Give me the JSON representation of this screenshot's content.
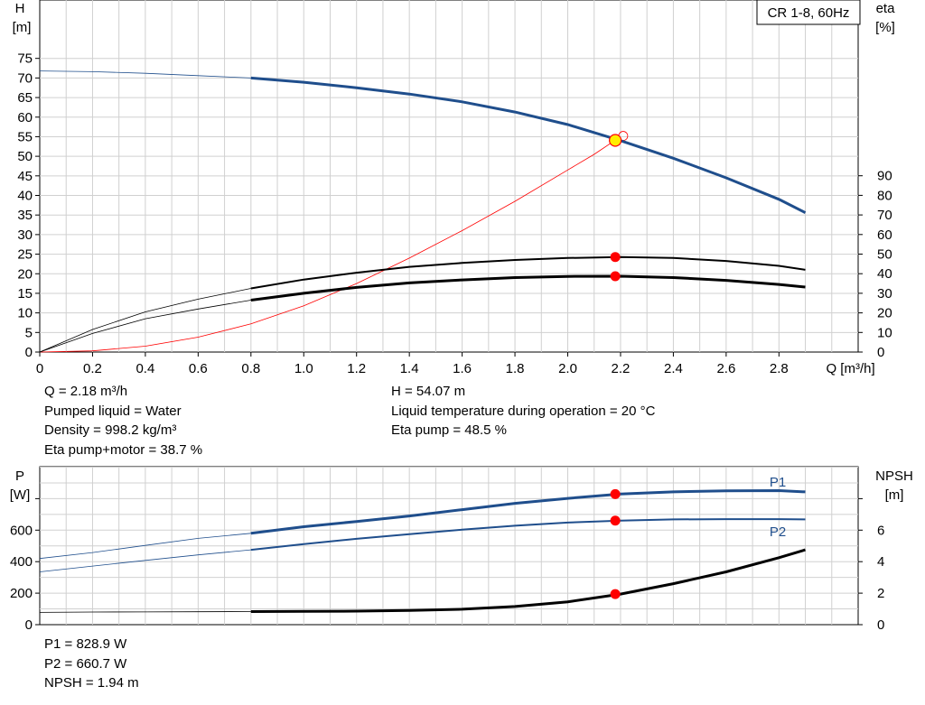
{
  "title_box": "CR 1-8, 60Hz",
  "colors": {
    "head": "#1f4e8c",
    "power": "#1f4e8c",
    "eta": "#000000",
    "npsh": "#000000",
    "eta_h": "#ff0000",
    "marker": "#ff0000",
    "duty_point": "#ffee00",
    "grid": "#d0d0d0"
  },
  "info_top": {
    "left": [
      "Q = 2.18 m³/h",
      "Pumped liquid = Water",
      "Density = 998.2 kg/m³",
      "Eta pump+motor = 38.7 %"
    ],
    "right": [
      "H = 54.07 m",
      "Liquid temperature during operation = 20 °C",
      "Eta pump = 48.5 %"
    ]
  },
  "info_bottom": [
    "P1 = 828.9 W",
    "P2 = 660.7 W",
    "NPSH = 1.94 m"
  ],
  "chart_data": [
    {
      "type": "line",
      "xlabel": "Q [m³/h]",
      "ylabel_left": [
        "H",
        "[m]"
      ],
      "ylabel_right": [
        "eta",
        "[%]"
      ],
      "x_ticks": [
        "0",
        "0.2",
        "0.4",
        "0.6",
        "0.8",
        "1.0",
        "1.2",
        "1.4",
        "1.6",
        "1.8",
        "2.0",
        "2.2",
        "2.4",
        "2.6",
        "2.8"
      ],
      "y_ticks_left": [
        "0",
        "5",
        "10",
        "15",
        "20",
        "25",
        "30",
        "35",
        "40",
        "45",
        "50",
        "55",
        "60",
        "65",
        "70",
        "75"
      ],
      "y_ticks_right": [
        "0",
        "10",
        "20",
        "30",
        "40",
        "50",
        "60",
        "70",
        "80",
        "90"
      ],
      "xlim": [
        0,
        3.1
      ],
      "ylim_left": [
        0,
        80
      ],
      "ylim_right": [
        0,
        110
      ],
      "grid": true,
      "duty_point": {
        "x": 2.18,
        "y": 54.07
      },
      "series": [
        {
          "id": "H",
          "axis": "left",
          "color": "#1f4e8c",
          "x": [
            0,
            0.2,
            0.4,
            0.6,
            0.8,
            1.0,
            1.2,
            1.4,
            1.6,
            1.8,
            2.0,
            2.2,
            2.4,
            2.6,
            2.8,
            2.9
          ],
          "y": [
            71.8,
            71.6,
            71.2,
            70.6,
            70.0,
            68.9,
            67.5,
            65.9,
            63.9,
            61.3,
            58.1,
            54.0,
            49.5,
            44.5,
            39.0,
            35.6
          ]
        },
        {
          "id": "eta_pump",
          "axis": "right",
          "color": "#000000",
          "x": [
            0,
            0.2,
            0.4,
            0.6,
            0.8,
            1.0,
            1.2,
            1.4,
            1.6,
            1.8,
            2.0,
            2.2,
            2.4,
            2.6,
            2.8,
            2.9
          ],
          "y": [
            0,
            11.5,
            20.5,
            27,
            32.5,
            37,
            40.5,
            43.5,
            45.5,
            47,
            48,
            48.5,
            48,
            46.5,
            44,
            42
          ]
        },
        {
          "id": "eta_pump_motor",
          "axis": "right",
          "color": "#000000",
          "x": [
            0,
            0.2,
            0.4,
            0.6,
            0.8,
            1.0,
            1.2,
            1.4,
            1.6,
            1.8,
            2.0,
            2.2,
            2.4,
            2.6,
            2.8,
            2.9
          ],
          "y": [
            0,
            9.5,
            17,
            22,
            26.5,
            30,
            33,
            35.3,
            36.8,
            38,
            38.6,
            38.7,
            38,
            36.6,
            34.5,
            33.2
          ]
        },
        {
          "id": "eta_hydraulic",
          "axis": "left",
          "color": "#ff0000",
          "x": [
            0,
            0.2,
            0.4,
            0.6,
            0.8,
            1.0,
            1.2,
            1.4,
            1.6,
            1.8,
            2.0,
            2.1,
            2.18
          ],
          "y": [
            0,
            0.3,
            1.5,
            3.8,
            7.2,
            11.8,
            17.5,
            24,
            31,
            38.5,
            46.5,
            50.5,
            54.1
          ]
        }
      ],
      "markers": [
        {
          "x": 2.18,
          "y": 48.5,
          "axis": "right"
        },
        {
          "x": 2.18,
          "y": 38.7,
          "axis": "right"
        }
      ]
    },
    {
      "type": "line",
      "ylabel_left": [
        "P",
        "[W]"
      ],
      "ylabel_right": [
        "NPSH",
        "[m]"
      ],
      "y_ticks_left": [
        "0",
        "200",
        "400",
        "600"
      ],
      "y_ticks_right": [
        "0",
        "2",
        "4",
        "6"
      ],
      "xlim": [
        0,
        3.1
      ],
      "ylim_left": [
        0,
        1000
      ],
      "ylim_right": [
        0,
        10
      ],
      "grid": true,
      "series": [
        {
          "id": "P1",
          "name": "P1",
          "axis": "left",
          "color": "#1f4e8c",
          "x": [
            0,
            0.2,
            0.4,
            0.6,
            0.8,
            1.0,
            1.2,
            1.4,
            1.6,
            1.8,
            2.0,
            2.2,
            2.4,
            2.6,
            2.8,
            2.9
          ],
          "y": [
            420,
            458,
            503,
            548,
            580,
            622,
            655,
            690,
            730,
            770,
            802,
            830,
            843,
            850,
            851,
            843
          ]
        },
        {
          "id": "P2",
          "name": "P2",
          "axis": "left",
          "color": "#1f4e8c",
          "x": [
            0,
            0.2,
            0.4,
            0.6,
            0.8,
            1.0,
            1.2,
            1.4,
            1.6,
            1.8,
            2.0,
            2.2,
            2.4,
            2.6,
            2.8,
            2.9
          ],
          "y": [
            335,
            372,
            408,
            443,
            475,
            512,
            545,
            575,
            603,
            628,
            648,
            660,
            668,
            670,
            670,
            668
          ]
        },
        {
          "id": "NPSH",
          "axis": "right",
          "color": "#000000",
          "x": [
            0,
            0.2,
            0.4,
            0.6,
            0.8,
            1.0,
            1.2,
            1.4,
            1.6,
            1.8,
            2.0,
            2.2,
            2.4,
            2.6,
            2.8,
            2.9
          ],
          "y": [
            0.78,
            0.8,
            0.81,
            0.82,
            0.83,
            0.84,
            0.86,
            0.9,
            0.98,
            1.15,
            1.45,
            1.94,
            2.6,
            3.35,
            4.25,
            4.75
          ]
        }
      ],
      "markers": [
        {
          "x": 2.18,
          "y": 828.9,
          "axis": "left"
        },
        {
          "x": 2.18,
          "y": 660.7,
          "axis": "left"
        },
        {
          "x": 2.18,
          "y": 1.94,
          "axis": "right"
        }
      ]
    }
  ]
}
